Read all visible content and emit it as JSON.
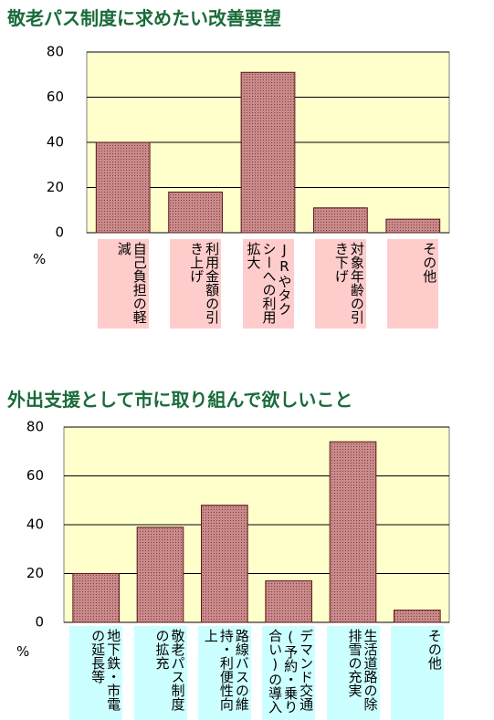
{
  "chart_data": [
    {
      "type": "bar",
      "title": "敬老パス制度に求めたい改善要望",
      "ylabel": "%",
      "categories": [
        "自己負担の軽減",
        "利用金額の引き上げ",
        "JRやタクシーへの利用拡大",
        "対象年齢の引き下げ",
        "その他"
      ],
      "values": [
        40,
        18,
        71,
        11,
        6
      ],
      "color": "#c07a7a",
      "label_color": "#ffcccc",
      "ylim": [
        0,
        80
      ],
      "yticks": [
        0,
        20,
        40,
        60,
        80
      ],
      "grid": true
    },
    {
      "type": "bar",
      "title": "外出支援として市に取り組んで欲しいこと",
      "ylabel": "%",
      "categories": [
        "地下鉄・市電の延長等",
        "敬老パス制度の拡充",
        "路線バスの維持・利便性向上",
        "デマンド交通(予約・乗り合い)の導入",
        "生活道路の除排雪の充実",
        "その他"
      ],
      "values": [
        20,
        39,
        48,
        17,
        74,
        5
      ],
      "color": "#c07a7a",
      "label_color": "#ccffff",
      "ylim": [
        0,
        80
      ],
      "yticks": [
        0,
        20,
        40,
        60,
        80
      ],
      "grid": true
    }
  ]
}
